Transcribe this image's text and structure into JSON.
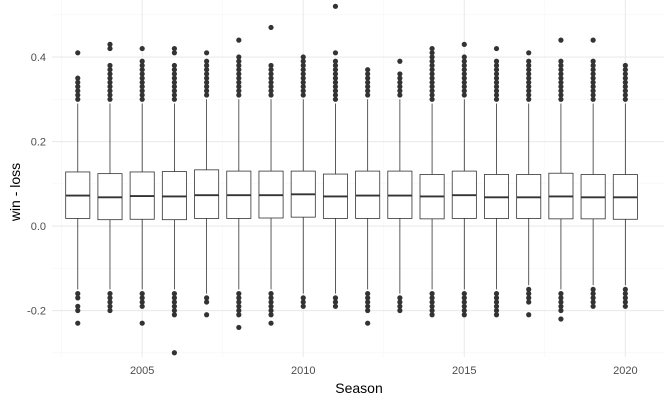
{
  "chart_data": {
    "type": "boxplot",
    "xlabel": "Season",
    "ylabel": "win - loss",
    "xlim": [
      2002.2,
      2021.2
    ],
    "ylim": [
      -0.31,
      0.535
    ],
    "x_ticks": [
      2005,
      2010,
      2015,
      2020
    ],
    "x_tick_labels": [
      "2005",
      "2010",
      "2015",
      "2020"
    ],
    "y_ticks": [
      -0.2,
      0.0,
      0.2,
      0.4
    ],
    "y_tick_labels": [
      "-0.2",
      "0.0",
      "0.2",
      "0.4"
    ],
    "grid": true,
    "legend": "none",
    "colors": {
      "box_fill": "#ffffff",
      "box_stroke": "#333333",
      "outlier": "#333333",
      "grid_major": "#ebebeb",
      "grid_minor": "#f5f5f5",
      "tick_label": "#4d4d4d",
      "title": "#000000"
    },
    "boxes": [
      {
        "season": 2003,
        "q1": 0.018,
        "median": 0.072,
        "q3": 0.128,
        "whisker_low": -0.15,
        "whisker_high": 0.29,
        "outliers_high": [
          0.3,
          0.31,
          0.32,
          0.33,
          0.34,
          0.35,
          0.41
        ],
        "outliers_low": [
          -0.16,
          -0.17,
          -0.19,
          -0.2,
          -0.23
        ]
      },
      {
        "season": 2004,
        "q1": 0.015,
        "median": 0.068,
        "q3": 0.124,
        "whisker_low": -0.15,
        "whisker_high": 0.29,
        "outliers_high": [
          0.3,
          0.31,
          0.32,
          0.33,
          0.34,
          0.35,
          0.36,
          0.37,
          0.38,
          0.42,
          0.43
        ],
        "outliers_low": [
          -0.16,
          -0.17,
          -0.18,
          -0.19,
          -0.2
        ]
      },
      {
        "season": 2005,
        "q1": 0.016,
        "median": 0.071,
        "q3": 0.128,
        "whisker_low": -0.15,
        "whisker_high": 0.29,
        "outliers_high": [
          0.3,
          0.31,
          0.32,
          0.33,
          0.34,
          0.35,
          0.36,
          0.37,
          0.38,
          0.39,
          0.42
        ],
        "outliers_low": [
          -0.16,
          -0.17,
          -0.18,
          -0.19,
          -0.23
        ]
      },
      {
        "season": 2006,
        "q1": 0.015,
        "median": 0.07,
        "q3": 0.129,
        "whisker_low": -0.15,
        "whisker_high": 0.29,
        "outliers_high": [
          0.3,
          0.31,
          0.32,
          0.33,
          0.34,
          0.35,
          0.36,
          0.37,
          0.38,
          0.41,
          0.42
        ],
        "outliers_low": [
          -0.16,
          -0.17,
          -0.18,
          -0.19,
          -0.2,
          -0.21,
          -0.3
        ]
      },
      {
        "season": 2007,
        "q1": 0.018,
        "median": 0.073,
        "q3": 0.133,
        "whisker_low": -0.16,
        "whisker_high": 0.3,
        "outliers_high": [
          0.31,
          0.32,
          0.33,
          0.34,
          0.35,
          0.36,
          0.37,
          0.38,
          0.39,
          0.41
        ],
        "outliers_low": [
          -0.17,
          -0.18,
          -0.21
        ]
      },
      {
        "season": 2008,
        "q1": 0.018,
        "median": 0.073,
        "q3": 0.13,
        "whisker_low": -0.15,
        "whisker_high": 0.3,
        "outliers_high": [
          0.31,
          0.32,
          0.33,
          0.34,
          0.35,
          0.36,
          0.37,
          0.38,
          0.39,
          0.4,
          0.44
        ],
        "outliers_low": [
          -0.16,
          -0.17,
          -0.18,
          -0.19,
          -0.2,
          -0.21,
          -0.24
        ]
      },
      {
        "season": 2009,
        "q1": 0.019,
        "median": 0.073,
        "q3": 0.13,
        "whisker_low": -0.15,
        "whisker_high": 0.3,
        "outliers_high": [
          0.31,
          0.32,
          0.33,
          0.34,
          0.35,
          0.36,
          0.37,
          0.38,
          0.47
        ],
        "outliers_low": [
          -0.16,
          -0.17,
          -0.18,
          -0.19,
          -0.2,
          -0.21,
          -0.23
        ]
      },
      {
        "season": 2010,
        "q1": 0.021,
        "median": 0.075,
        "q3": 0.13,
        "whisker_low": -0.16,
        "whisker_high": 0.3,
        "outliers_high": [
          0.31,
          0.32,
          0.33,
          0.34,
          0.35,
          0.36,
          0.37,
          0.38,
          0.39,
          0.4
        ],
        "outliers_low": [
          -0.17,
          -0.18,
          -0.19
        ]
      },
      {
        "season": 2011,
        "q1": 0.018,
        "median": 0.07,
        "q3": 0.123,
        "whisker_low": -0.16,
        "whisker_high": 0.29,
        "outliers_high": [
          0.3,
          0.31,
          0.32,
          0.33,
          0.34,
          0.35,
          0.36,
          0.37,
          0.38,
          0.39,
          0.41,
          0.52
        ],
        "outliers_low": [
          -0.17,
          -0.18,
          -0.19
        ]
      },
      {
        "season": 2012,
        "q1": 0.018,
        "median": 0.072,
        "q3": 0.13,
        "whisker_low": -0.15,
        "whisker_high": 0.3,
        "outliers_high": [
          0.31,
          0.32,
          0.33,
          0.34,
          0.35,
          0.36,
          0.37
        ],
        "outliers_low": [
          -0.16,
          -0.17,
          -0.18,
          -0.19,
          -0.2,
          -0.23
        ]
      },
      {
        "season": 2013,
        "q1": 0.018,
        "median": 0.072,
        "q3": 0.13,
        "whisker_low": -0.16,
        "whisker_high": 0.3,
        "outliers_high": [
          0.31,
          0.32,
          0.33,
          0.34,
          0.35,
          0.36,
          0.39
        ],
        "outliers_low": [
          -0.17,
          -0.18,
          -0.19,
          -0.2
        ]
      },
      {
        "season": 2014,
        "q1": 0.017,
        "median": 0.07,
        "q3": 0.122,
        "whisker_low": -0.15,
        "whisker_high": 0.29,
        "outliers_high": [
          0.3,
          0.31,
          0.32,
          0.33,
          0.34,
          0.35,
          0.36,
          0.37,
          0.38,
          0.39,
          0.4,
          0.41,
          0.42
        ],
        "outliers_low": [
          -0.16,
          -0.17,
          -0.18,
          -0.19,
          -0.2,
          -0.21
        ]
      },
      {
        "season": 2015,
        "q1": 0.018,
        "median": 0.073,
        "q3": 0.13,
        "whisker_low": -0.15,
        "whisker_high": 0.3,
        "outliers_high": [
          0.31,
          0.32,
          0.33,
          0.34,
          0.35,
          0.36,
          0.37,
          0.38,
          0.39,
          0.4,
          0.43
        ],
        "outliers_low": [
          -0.16,
          -0.17,
          -0.18,
          -0.19,
          -0.2,
          -0.21
        ]
      },
      {
        "season": 2016,
        "q1": 0.018,
        "median": 0.068,
        "q3": 0.122,
        "whisker_low": -0.15,
        "whisker_high": 0.29,
        "outliers_high": [
          0.3,
          0.31,
          0.32,
          0.33,
          0.34,
          0.35,
          0.36,
          0.37,
          0.38,
          0.39,
          0.42
        ],
        "outliers_low": [
          -0.16,
          -0.17,
          -0.18,
          -0.19,
          -0.2,
          -0.21
        ]
      },
      {
        "season": 2017,
        "q1": 0.018,
        "median": 0.068,
        "q3": 0.122,
        "whisker_low": -0.14,
        "whisker_high": 0.29,
        "outliers_high": [
          0.3,
          0.31,
          0.32,
          0.33,
          0.34,
          0.35,
          0.36,
          0.37,
          0.38,
          0.39,
          0.41
        ],
        "outliers_low": [
          -0.15,
          -0.16,
          -0.17,
          -0.18,
          -0.21
        ]
      },
      {
        "season": 2018,
        "q1": 0.017,
        "median": 0.07,
        "q3": 0.125,
        "whisker_low": -0.15,
        "whisker_high": 0.29,
        "outliers_high": [
          0.3,
          0.31,
          0.32,
          0.33,
          0.34,
          0.35,
          0.36,
          0.37,
          0.38,
          0.39,
          0.44
        ],
        "outliers_low": [
          -0.16,
          -0.17,
          -0.18,
          -0.19,
          -0.2,
          -0.22
        ]
      },
      {
        "season": 2019,
        "q1": 0.017,
        "median": 0.068,
        "q3": 0.122,
        "whisker_low": -0.14,
        "whisker_high": 0.29,
        "outliers_high": [
          0.3,
          0.31,
          0.32,
          0.33,
          0.34,
          0.35,
          0.36,
          0.37,
          0.38,
          0.39,
          0.44
        ],
        "outliers_low": [
          -0.15,
          -0.16,
          -0.17,
          -0.18,
          -0.19
        ]
      },
      {
        "season": 2020,
        "q1": 0.016,
        "median": 0.068,
        "q3": 0.122,
        "whisker_low": -0.14,
        "whisker_high": 0.29,
        "outliers_high": [
          0.3,
          0.31,
          0.32,
          0.33,
          0.34,
          0.35,
          0.36,
          0.37,
          0.38
        ],
        "outliers_low": [
          -0.15,
          -0.16,
          -0.17,
          -0.18,
          -0.19
        ]
      }
    ]
  }
}
